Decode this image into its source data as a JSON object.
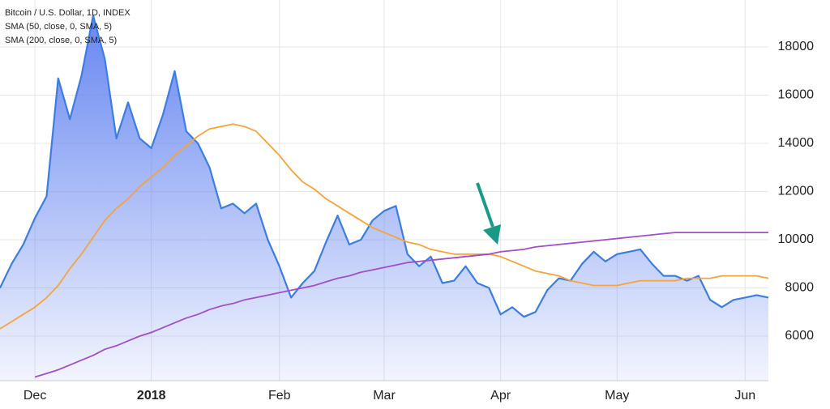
{
  "chart_data": {
    "type": "line",
    "categories": [
      null,
      null,
      null,
      "Dec",
      null,
      null,
      null,
      null,
      null,
      null,
      null,
      null,
      null,
      "2018",
      null,
      null,
      null,
      null,
      null,
      null,
      null,
      null,
      null,
      null,
      "Feb",
      null,
      null,
      null,
      null,
      null,
      null,
      null,
      null,
      "Mar",
      null,
      null,
      null,
      null,
      null,
      null,
      null,
      null,
      null,
      "Apr",
      null,
      null,
      null,
      null,
      null,
      null,
      null,
      null,
      null,
      "May",
      null,
      null,
      null,
      null,
      null,
      null,
      null,
      null,
      null,
      null,
      "Jun",
      null,
      null
    ],
    "series": [
      {
        "name": "Bitcoin / U.S. Dollar, 1D, INDEX",
        "color": "#3c7ee0",
        "values": [
          8000,
          9000,
          9800,
          10900,
          11800,
          16700,
          15000,
          16800,
          19300,
          17500,
          14200,
          15700,
          14200,
          13800,
          15200,
          17000,
          14500,
          14000,
          13000,
          11300,
          11500,
          11100,
          11500,
          10000,
          8900,
          7600,
          8200,
          8700,
          9900,
          11000,
          9800,
          10000,
          10800,
          11200,
          11400,
          9400,
          8900,
          9300,
          8200,
          8300,
          8900,
          8200,
          8000,
          6900,
          7200,
          6800,
          7000,
          7900,
          8400,
          8300,
          9000,
          9500,
          9100,
          9400,
          9500,
          9600,
          9000,
          8500,
          8500,
          8300,
          8500,
          7500,
          7200,
          7500,
          7600,
          7700,
          7600
        ]
      },
      {
        "name": "SMA (50, close, 0, SMA, 5)",
        "color": "#f5a33a",
        "values": [
          6300,
          6600,
          6900,
          7200,
          7600,
          8100,
          8800,
          9400,
          10100,
          10800,
          11300,
          11700,
          12200,
          12600,
          13000,
          13500,
          13900,
          14300,
          14600,
          14700,
          14800,
          14700,
          14500,
          14000,
          13500,
          12900,
          12400,
          12100,
          11700,
          11400,
          11100,
          10800,
          10500,
          10300,
          10100,
          9900,
          9800,
          9600,
          9500,
          9400,
          9400,
          9400,
          9400,
          9300,
          9100,
          8900,
          8700,
          8600,
          8500,
          8300,
          8200,
          8100,
          8100,
          8100,
          8200,
          8300,
          8300,
          8300,
          8300,
          8400,
          8400,
          8400,
          8500,
          8500,
          8500,
          8500,
          8400
        ]
      },
      {
        "name": "SMA (200, close, 0, SMA, 5)",
        "color": "#a24ec6",
        "values": [
          null,
          null,
          null,
          4300,
          4450,
          4600,
          4800,
          5000,
          5200,
          5450,
          5600,
          5800,
          6000,
          6150,
          6350,
          6550,
          6750,
          6900,
          7100,
          7250,
          7350,
          7500,
          7600,
          7700,
          7800,
          7900,
          8000,
          8100,
          8250,
          8400,
          8500,
          8650,
          8750,
          8850,
          8950,
          9050,
          9100,
          9150,
          9200,
          9250,
          9300,
          9350,
          9400,
          9500,
          9550,
          9600,
          9700,
          9750,
          9800,
          9850,
          9900,
          9950,
          10000,
          10050,
          10100,
          10150,
          10200,
          10250,
          10300,
          10300,
          10300,
          10300,
          10300,
          10300,
          10300,
          10300,
          10300
        ]
      }
    ],
    "ylim": [
      4150,
      19950
    ],
    "yticks": [
      6000,
      8000,
      10000,
      12000,
      14000,
      16000,
      18000
    ],
    "grid": true
  }
}
